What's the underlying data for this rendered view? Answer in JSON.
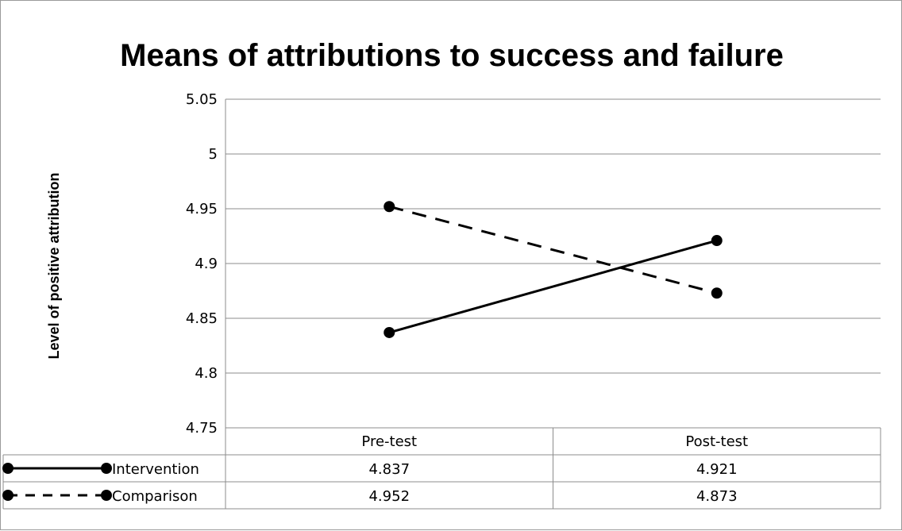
{
  "chart_data": {
    "type": "line",
    "title": "Means of attributions to success and failure",
    "xlabel": "",
    "ylabel": "Level of positive attribution",
    "categories": [
      "Pre-test",
      "Post-test"
    ],
    "ylim": [
      4.75,
      5.05
    ],
    "yticks": [
      "5.05",
      "5",
      "4.95",
      "4.9",
      "4.85",
      "4.8",
      "4.75"
    ],
    "grid": true,
    "legend": "data-table",
    "series": [
      {
        "name": "Intervention",
        "values": [
          4.837,
          4.921
        ],
        "display": [
          "4.837",
          "4.921"
        ],
        "line_style": "solid",
        "color": "#000000"
      },
      {
        "name": "Comparison",
        "values": [
          4.952,
          4.873
        ],
        "display": [
          "4.952",
          "4.873"
        ],
        "line_style": "dashed",
        "color": "#000000"
      }
    ]
  }
}
